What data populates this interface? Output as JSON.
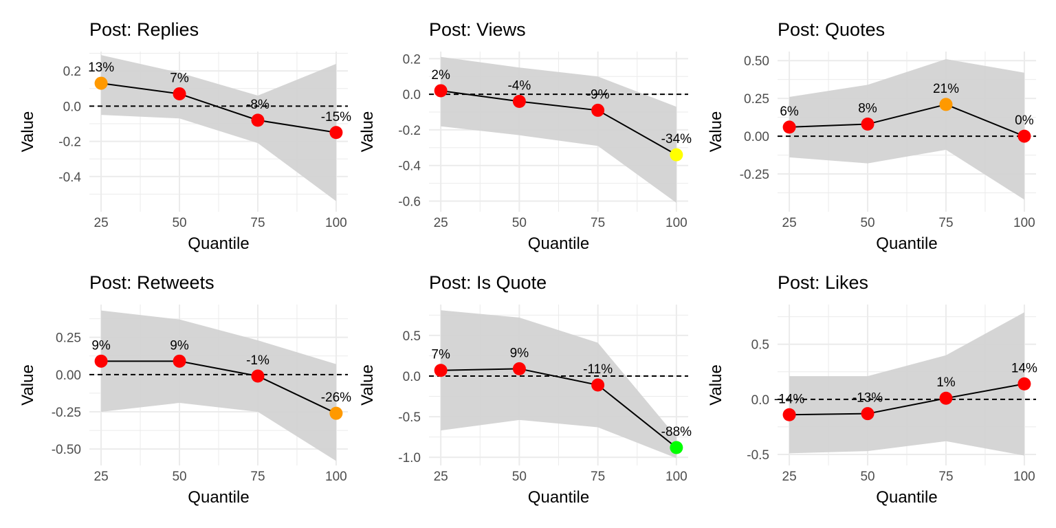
{
  "colors": {
    "ribbon": "#d3d3d3",
    "line": "#000000",
    "zero_line": "#000000",
    "grid": "#ebebeb",
    "red": "#ff0000",
    "orange": "#ff9900",
    "yellow": "#ffff00",
    "green": "#00ff00"
  },
  "chart_data": [
    {
      "type": "line",
      "title": "Post: Replies",
      "xlabel": "Quantile",
      "ylabel": "Value",
      "x": [
        25,
        50,
        75,
        100
      ],
      "values": [
        0.13,
        0.07,
        -0.08,
        -0.15
      ],
      "ci_lower": [
        -0.05,
        -0.07,
        -0.21,
        -0.54
      ],
      "ci_upper": [
        0.29,
        0.19,
        0.06,
        0.24
      ],
      "labels": [
        "13%",
        "7%",
        "-8%",
        "-15%"
      ],
      "point_colors": [
        "orange",
        "red",
        "red",
        "red"
      ],
      "xticks": [
        25,
        50,
        75,
        100
      ],
      "yticks": [
        -0.4,
        -0.2,
        0.0,
        0.2
      ],
      "ytick_labels": [
        "-0.4",
        "-0.2",
        "0.0",
        "0.2"
      ],
      "ylim": [
        -0.6,
        0.31
      ],
      "grid": true,
      "zero_line": true
    },
    {
      "type": "line",
      "title": "Post: Views",
      "xlabel": "Quantile",
      "ylabel": "Value",
      "x": [
        25,
        50,
        75,
        100
      ],
      "values": [
        0.02,
        -0.04,
        -0.09,
        -0.34
      ],
      "ci_lower": [
        -0.18,
        -0.23,
        -0.29,
        -0.61
      ],
      "ci_upper": [
        0.21,
        0.15,
        0.1,
        -0.07
      ],
      "labels": [
        "2%",
        "-4%",
        "-9%",
        "-34%"
      ],
      "point_colors": [
        "red",
        "red",
        "red",
        "yellow"
      ],
      "xticks": [
        25,
        50,
        75,
        100
      ],
      "yticks": [
        -0.6,
        -0.4,
        -0.2,
        0.0,
        0.2
      ],
      "ytick_labels": [
        "-0.6",
        "-0.4",
        "-0.2",
        "0.0",
        "0.2"
      ],
      "ylim": [
        -0.66,
        0.24
      ],
      "grid": true,
      "zero_line": true
    },
    {
      "type": "line",
      "title": "Post: Quotes",
      "xlabel": "Quantile",
      "ylabel": "Value",
      "x": [
        25,
        50,
        75,
        100
      ],
      "values": [
        0.06,
        0.08,
        0.21,
        0.0
      ],
      "ci_lower": [
        -0.14,
        -0.18,
        -0.09,
        -0.42
      ],
      "ci_upper": [
        0.26,
        0.34,
        0.51,
        0.42
      ],
      "labels": [
        "6%",
        "8%",
        "21%",
        "0%"
      ],
      "point_colors": [
        "red",
        "red",
        "orange",
        "red"
      ],
      "xticks": [
        25,
        50,
        75,
        100
      ],
      "yticks": [
        -0.25,
        0.0,
        0.25,
        0.5
      ],
      "ytick_labels": [
        "-0.25",
        "0.00",
        "0.25",
        "0.50"
      ],
      "ylim": [
        -0.5,
        0.56
      ],
      "grid": true,
      "zero_line": true
    },
    {
      "type": "line",
      "title": "Post: Retweets",
      "xlabel": "Quantile",
      "ylabel": "Value",
      "x": [
        25,
        50,
        75,
        100
      ],
      "values": [
        0.09,
        0.09,
        -0.01,
        -0.26
      ],
      "ci_lower": [
        -0.25,
        -0.19,
        -0.25,
        -0.58
      ],
      "ci_upper": [
        0.43,
        0.37,
        0.23,
        0.07
      ],
      "labels": [
        "9%",
        "9%",
        "-1%",
        "-26%"
      ],
      "point_colors": [
        "red",
        "red",
        "red",
        "orange"
      ],
      "xticks": [
        25,
        50,
        75,
        100
      ],
      "yticks": [
        -0.5,
        -0.25,
        0.0,
        0.25
      ],
      "ytick_labels": [
        "-0.50",
        "-0.25",
        "0.00",
        "0.25"
      ],
      "ylim": [
        -0.61,
        0.47
      ],
      "grid": true,
      "zero_line": true
    },
    {
      "type": "line",
      "title": "Post: Is Quote",
      "xlabel": "Quantile",
      "ylabel": "Value",
      "x": [
        25,
        50,
        75,
        100
      ],
      "values": [
        0.07,
        0.09,
        -0.11,
        -0.88
      ],
      "ci_lower": [
        -0.67,
        -0.54,
        -0.63,
        -1.01
      ],
      "ci_upper": [
        0.81,
        0.72,
        0.41,
        -0.75
      ],
      "labels": [
        "7%",
        "9%",
        "-11%",
        "-88%"
      ],
      "point_colors": [
        "red",
        "red",
        "red",
        "green"
      ],
      "xticks": [
        25,
        50,
        75,
        100
      ],
      "yticks": [
        -1.0,
        -0.5,
        0.0,
        0.5
      ],
      "ytick_labels": [
        "-1.0",
        "-0.5",
        "0.0",
        "0.5"
      ],
      "ylim": [
        -1.1,
        0.88
      ],
      "grid": true,
      "zero_line": true
    },
    {
      "type": "line",
      "title": "Post: Likes",
      "xlabel": "Quantile",
      "ylabel": "Value",
      "x": [
        25,
        50,
        75,
        100
      ],
      "values": [
        -0.14,
        -0.13,
        0.01,
        0.14
      ],
      "ci_lower": [
        -0.49,
        -0.47,
        -0.38,
        -0.51
      ],
      "ci_upper": [
        0.21,
        0.21,
        0.4,
        0.79
      ],
      "labels": [
        "-14%",
        "-13%",
        "1%",
        "14%"
      ],
      "point_colors": [
        "red",
        "red",
        "red",
        "red"
      ],
      "xticks": [
        25,
        50,
        75,
        100
      ],
      "yticks": [
        -0.5,
        0.0,
        0.5
      ],
      "ytick_labels": [
        "-0.5",
        "0.0",
        "0.5"
      ],
      "ylim": [
        -0.6,
        0.86
      ],
      "grid": true,
      "zero_line": true
    }
  ]
}
